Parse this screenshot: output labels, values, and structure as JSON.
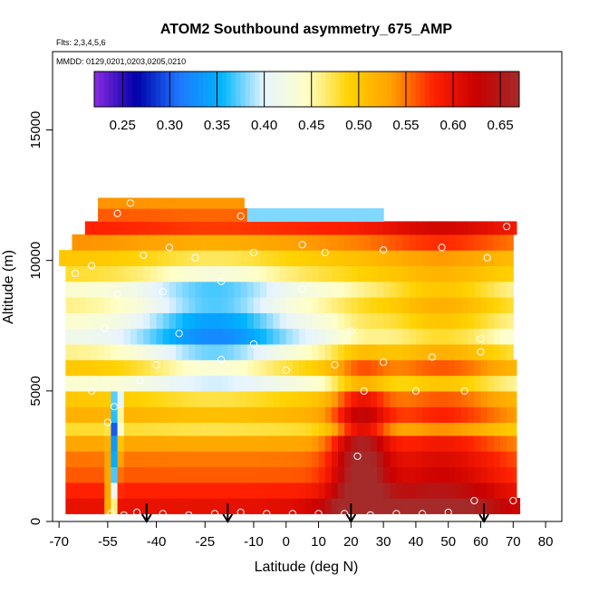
{
  "chart_data": {
    "type": "heatmap",
    "title": "ATOM2 Southbound asymmetry_675_AMP",
    "flights_label": "Flts: 2,3,4,5,6",
    "dates_label": "MMDD: 0129,0201,0203,0205,0210",
    "xlabel": "Latitude (deg N)",
    "ylabel": "Altitude (m)",
    "xlim": [
      -72,
      85
    ],
    "ylim": [
      0,
      18000
    ],
    "x_ticks": [
      -70,
      -55,
      -40,
      -25,
      -10,
      0,
      10,
      20,
      30,
      40,
      50,
      60,
      70,
      80
    ],
    "x_tick_labels": [
      "-70",
      "-55",
      "-40",
      "-25",
      "-10",
      "0",
      "10",
      "20",
      "30",
      "40",
      "50",
      "60",
      "70",
      "80"
    ],
    "y_ticks": [
      0,
      5000,
      10000,
      15000
    ],
    "y_tick_labels": [
      "0",
      "5000",
      "10000",
      "15000"
    ],
    "colorbar": {
      "range": [
        0.22,
        0.67
      ],
      "ticks": [
        0.25,
        0.3,
        0.35,
        0.4,
        0.45,
        0.5,
        0.55,
        0.6,
        0.65
      ],
      "tick_labels": [
        "0.25",
        "0.30",
        "0.35",
        "0.40",
        "0.45",
        "0.50",
        "0.55",
        "0.60",
        "0.65"
      ],
      "colors": [
        "#8a2be2",
        "#0000aa",
        "#1e78ff",
        "#00b4ff",
        "#e6f4ff",
        "#ffffc8",
        "#ffd200",
        "#ffa000",
        "#ff2000",
        "#c80000",
        "#a52a2a"
      ]
    },
    "layers": [
      {
        "alt": 300,
        "alt_top": 900,
        "x0": -68,
        "x1": 72,
        "base": 0.6
      },
      {
        "alt": 900,
        "alt_top": 1500,
        "x0": -68,
        "x1": 71,
        "base": 0.58
      },
      {
        "alt": 1500,
        "alt_top": 2100,
        "x0": -68,
        "x1": 71,
        "base": 0.56
      },
      {
        "alt": 2100,
        "alt_top": 2700,
        "x0": -68,
        "x1": 71,
        "base": 0.55
      },
      {
        "alt": 2700,
        "alt_top": 3300,
        "x0": -68,
        "x1": 71,
        "base": 0.53
      },
      {
        "alt": 3300,
        "alt_top": 3800,
        "x0": -68,
        "x1": 71,
        "base": 0.48
      },
      {
        "alt": 3800,
        "alt_top": 4400,
        "x0": -68,
        "x1": 71,
        "base": 0.52
      },
      {
        "alt": 4400,
        "alt_top": 5000,
        "x0": -68,
        "x1": 71,
        "base": 0.5
      },
      {
        "alt": 5000,
        "alt_top": 5600,
        "x0": -68,
        "x1": 71,
        "base": 0.44
      },
      {
        "alt": 5600,
        "alt_top": 6200,
        "x0": -68,
        "x1": 71,
        "base": 0.5
      },
      {
        "alt": 6200,
        "alt_top": 6800,
        "x0": -68,
        "x1": 70,
        "base": 0.46
      },
      {
        "alt": 6800,
        "alt_top": 7400,
        "x0": -68,
        "x1": 70,
        "base": 0.42
      },
      {
        "alt": 7400,
        "alt_top": 8000,
        "x0": -68,
        "x1": 70,
        "base": 0.44
      },
      {
        "alt": 8000,
        "alt_top": 8600,
        "x0": -68,
        "x1": 70,
        "base": 0.46
      },
      {
        "alt": 8600,
        "alt_top": 9200,
        "x0": -68,
        "x1": 70,
        "base": 0.44
      },
      {
        "alt": 9200,
        "alt_top": 9800,
        "x0": -68,
        "x1": 70,
        "base": 0.48
      },
      {
        "alt": 9800,
        "alt_top": 10400,
        "x0": -70,
        "x1": 70,
        "base": 0.5
      },
      {
        "alt": 10400,
        "alt_top": 11000,
        "x0": -66,
        "x1": 70,
        "base": 0.54
      },
      {
        "alt": 11000,
        "alt_top": 11500,
        "x0": -62,
        "x1": 71,
        "base": 0.58
      },
      {
        "alt": 11500,
        "alt_top": 12000,
        "x0": -58,
        "x1": 30,
        "base": 0.56
      },
      {
        "alt": 12000,
        "alt_top": 12400,
        "x0": -58,
        "x1": -13,
        "base": 0.54
      }
    ],
    "samples": [
      {
        "lat": -54,
        "alt": 300
      },
      {
        "lat": -50,
        "alt": 250
      },
      {
        "lat": -46,
        "alt": 350
      },
      {
        "lat": -38,
        "alt": 300
      },
      {
        "lat": -30,
        "alt": 250
      },
      {
        "lat": -22,
        "alt": 300
      },
      {
        "lat": -14,
        "alt": 350
      },
      {
        "lat": -6,
        "alt": 300
      },
      {
        "lat": 2,
        "alt": 300
      },
      {
        "lat": 10,
        "alt": 300
      },
      {
        "lat": 18,
        "alt": 300
      },
      {
        "lat": 26,
        "alt": 250
      },
      {
        "lat": 34,
        "alt": 300
      },
      {
        "lat": 42,
        "alt": 300
      },
      {
        "lat": 50,
        "alt": 350
      },
      {
        "lat": 58,
        "alt": 800
      },
      {
        "lat": 70,
        "alt": 800
      },
      {
        "lat": 22,
        "alt": 2500
      },
      {
        "lat": -55,
        "alt": 3800
      },
      {
        "lat": -53,
        "alt": 4400
      },
      {
        "lat": -60,
        "alt": 5000
      },
      {
        "lat": -45,
        "alt": 5400
      },
      {
        "lat": 24,
        "alt": 5000
      },
      {
        "lat": 40,
        "alt": 5000
      },
      {
        "lat": 55,
        "alt": 5000
      },
      {
        "lat": -40,
        "alt": 6000
      },
      {
        "lat": -20,
        "alt": 6200
      },
      {
        "lat": 0,
        "alt": 5800
      },
      {
        "lat": 15,
        "alt": 6000
      },
      {
        "lat": 30,
        "alt": 6100
      },
      {
        "lat": 45,
        "alt": 6300
      },
      {
        "lat": 60,
        "alt": 6500
      },
      {
        "lat": -56,
        "alt": 7400
      },
      {
        "lat": -33,
        "alt": 7200
      },
      {
        "lat": -10,
        "alt": 6800
      },
      {
        "lat": 20,
        "alt": 7300
      },
      {
        "lat": 60,
        "alt": 7000
      },
      {
        "lat": -52,
        "alt": 8700
      },
      {
        "lat": -38,
        "alt": 8800
      },
      {
        "lat": -20,
        "alt": 9200
      },
      {
        "lat": 5,
        "alt": 8900
      },
      {
        "lat": -65,
        "alt": 9500
      },
      {
        "lat": -60,
        "alt": 9800
      },
      {
        "lat": -44,
        "alt": 10200
      },
      {
        "lat": -28,
        "alt": 10100
      },
      {
        "lat": -10,
        "alt": 10300
      },
      {
        "lat": 12,
        "alt": 10300
      },
      {
        "lat": 30,
        "alt": 10400
      },
      {
        "lat": 48,
        "alt": 10500
      },
      {
        "lat": 62,
        "alt": 10100
      },
      {
        "lat": 5,
        "alt": 10600
      },
      {
        "lat": -36,
        "alt": 10500
      },
      {
        "lat": 68,
        "alt": 11300
      },
      {
        "lat": -52,
        "alt": 11800
      },
      {
        "lat": -14,
        "alt": 11700
      },
      {
        "lat": -48,
        "alt": 12200
      }
    ],
    "arrows": [
      -43,
      -18,
      20,
      61
    ]
  }
}
